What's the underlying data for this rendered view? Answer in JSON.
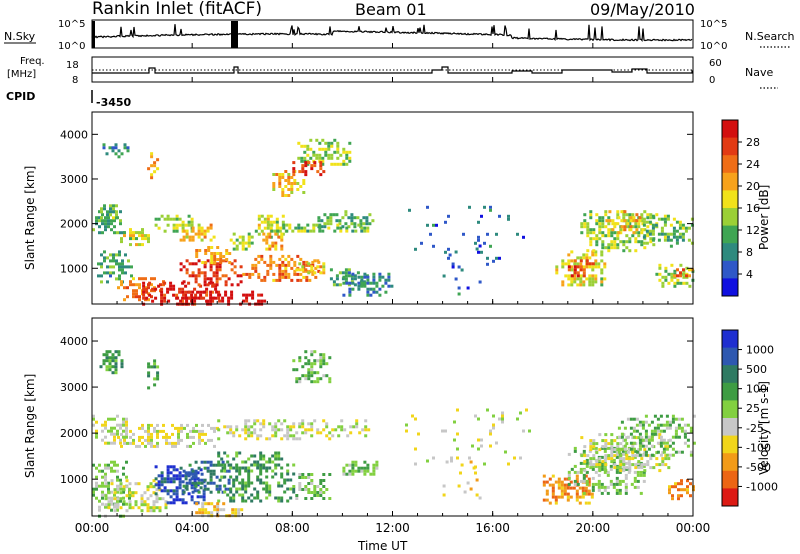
{
  "header": {
    "title": "Rankin Inlet (fitACF)",
    "beam": "Beam 01",
    "date": "09/May/2010"
  },
  "status_panels": {
    "nsky_label": "N.Sky",
    "nsky_ticks": [
      "10^5",
      "10^0"
    ],
    "nsearch_label": "N.Search",
    "nsearch_ticks": [
      "10^5",
      "10^0"
    ],
    "freq_label_1": "Freq.",
    "freq_label_2": "[MHz]",
    "freq_ticks": [
      "18",
      "8"
    ],
    "nave_label": "Nave",
    "nave_ticks": [
      "60",
      "0"
    ],
    "cpid_label": "CPID",
    "cpid_value": "-3450"
  },
  "chart_data": [
    {
      "type": "heatmap",
      "name": "power",
      "ylabel": "Slant Range [km]",
      "xlabel": "Time UT",
      "x_ticks": [
        "00:00",
        "04:00",
        "08:00",
        "12:00",
        "16:00",
        "20:00",
        "00:00"
      ],
      "y_ticks": [
        1000,
        2000,
        3000,
        4000
      ],
      "ylim": [
        200,
        4500
      ],
      "xlim_hours": [
        0,
        24
      ],
      "colorbar_label": "Power [dB]",
      "colorbar_ticks": [
        "4",
        "8",
        "12",
        "16",
        "20",
        "24",
        "28"
      ],
      "colorbar_colors": [
        "#1010e0",
        "#2f58c8",
        "#2e8a7e",
        "#3fa553",
        "#9bd036",
        "#f1e21a",
        "#f7a21b",
        "#ef6d16",
        "#e23a13",
        "#d30f0f"
      ],
      "blobs": [
        {
          "t": [
            0.0,
            1.2
          ],
          "r": [
            1800,
            2300
          ],
          "v": 8
        },
        {
          "t": [
            0.2,
            1.0
          ],
          "r": [
            2100,
            2500
          ],
          "v": 10
        },
        {
          "t": [
            0.3,
            1.4
          ],
          "r": [
            3500,
            3800
          ],
          "v": 6
        },
        {
          "t": [
            2.2,
            2.6
          ],
          "r": [
            3000,
            3600
          ],
          "v": 18
        },
        {
          "t": [
            1.0,
            2.3
          ],
          "r": [
            1500,
            1900
          ],
          "v": 14
        },
        {
          "t": [
            2.5,
            4.0
          ],
          "r": [
            1800,
            2200
          ],
          "v": 12
        },
        {
          "t": [
            3.5,
            5.0
          ],
          "r": [
            1600,
            2000
          ],
          "v": 16
        },
        {
          "t": [
            5.5,
            6.5
          ],
          "r": [
            1400,
            1800
          ],
          "v": 12
        },
        {
          "t": [
            6.5,
            7.8
          ],
          "r": [
            1700,
            2200
          ],
          "v": 14
        },
        {
          "t": [
            6.8,
            7.6
          ],
          "r": [
            1400,
            1800
          ],
          "v": 18
        },
        {
          "t": [
            7.2,
            8.4
          ],
          "r": [
            2600,
            3200
          ],
          "v": 16
        },
        {
          "t": [
            8.2,
            10.3
          ],
          "r": [
            3300,
            3900
          ],
          "v": 12
        },
        {
          "t": [
            8.0,
            9.3
          ],
          "r": [
            3100,
            3400
          ],
          "v": 24
        },
        {
          "t": [
            9.0,
            11.2
          ],
          "r": [
            1900,
            2300
          ],
          "v": 9
        },
        {
          "t": [
            7.0,
            11.0
          ],
          "r": [
            1800,
            2000
          ],
          "v": 11
        },
        {
          "t": [
            0.2,
            1.6
          ],
          "r": [
            700,
            1400
          ],
          "v": 8
        },
        {
          "t": [
            1.0,
            2.8
          ],
          "r": [
            300,
            800
          ],
          "v": 20
        },
        {
          "t": [
            2.0,
            5.0
          ],
          "r": [
            200,
            700
          ],
          "v": 26
        },
        {
          "t": [
            3.0,
            7.0
          ],
          "r": [
            200,
            500
          ],
          "v": 28
        },
        {
          "t": [
            3.5,
            6.0
          ],
          "r": [
            600,
            1200
          ],
          "v": 24
        },
        {
          "t": [
            4.0,
            5.5
          ],
          "r": [
            1100,
            1500
          ],
          "v": 18
        },
        {
          "t": [
            6.0,
            9.0
          ],
          "r": [
            700,
            1300
          ],
          "v": 20
        },
        {
          "t": [
            8.0,
            9.5
          ],
          "r": [
            900,
            1200
          ],
          "v": 16
        },
        {
          "t": [
            9.5,
            11.0
          ],
          "r": [
            600,
            1000
          ],
          "v": 8
        },
        {
          "t": [
            10.0,
            12.0
          ],
          "r": [
            400,
            900
          ],
          "v": 6
        },
        {
          "t": [
            18.5,
            20.5
          ],
          "r": [
            600,
            1400
          ],
          "v": 14
        },
        {
          "t": [
            19.0,
            20.0
          ],
          "r": [
            800,
            1200
          ],
          "v": 24
        },
        {
          "t": [
            19.5,
            22.5
          ],
          "r": [
            1400,
            2300
          ],
          "v": 12
        },
        {
          "t": [
            20.5,
            22.0
          ],
          "r": [
            1800,
            2300
          ],
          "v": 18
        },
        {
          "t": [
            22.0,
            24.0
          ],
          "r": [
            1500,
            2200
          ],
          "v": 10
        },
        {
          "t": [
            22.5,
            24.0
          ],
          "r": [
            600,
            1100
          ],
          "v": 12
        },
        {
          "t": [
            23.2,
            24.0
          ],
          "r": [
            800,
            1000
          ],
          "v": 20
        },
        {
          "t": [
            14.0,
            15.5
          ],
          "r": [
            400,
            1600
          ],
          "v": 4
        },
        {
          "t": [
            12.5,
            17.5
          ],
          "r": [
            1000,
            2600
          ],
          "v": 4
        }
      ]
    },
    {
      "type": "heatmap",
      "name": "velocity",
      "ylabel": "Slant Range [km]",
      "xlabel": "Time UT",
      "x_ticks": [
        "00:00",
        "04:00",
        "08:00",
        "12:00",
        "16:00",
        "20:00",
        "00:00"
      ],
      "y_ticks": [
        1000,
        2000,
        3000,
        4000
      ],
      "ylim": [
        200,
        4500
      ],
      "xlim_hours": [
        0,
        24
      ],
      "colorbar_label": "Velocity [m s-1]",
      "colorbar_ticks": [
        "1000",
        "500",
        "100",
        "25",
        "-25",
        "-100",
        "-500",
        "-1000"
      ],
      "colorbar_colors": [
        "#1f2fd0",
        "#2e58b0",
        "#2f7a62",
        "#3e9c43",
        "#82d040",
        "#c7c7c7",
        "#f1d51a",
        "#f29b18",
        "#ec6514",
        "#dc1a14"
      ],
      "blobs": [
        {
          "t": [
            0.0,
            1.4
          ],
          "r": [
            1800,
            2400
          ],
          "v": 0
        },
        {
          "t": [
            0.3,
            1.2
          ],
          "r": [
            3300,
            3800
          ],
          "v": 2
        },
        {
          "t": [
            2.2,
            2.6
          ],
          "r": [
            3000,
            3600
          ],
          "v": 2
        },
        {
          "t": [
            1.0,
            5.0
          ],
          "r": [
            1700,
            2200
          ],
          "v": 0
        },
        {
          "t": [
            5.0,
            11.0
          ],
          "r": [
            1900,
            2300
          ],
          "v": 0
        },
        {
          "t": [
            8.0,
            9.5
          ],
          "r": [
            3100,
            3800
          ],
          "v": 1
        },
        {
          "t": [
            0.0,
            1.5
          ],
          "r": [
            200,
            1400
          ],
          "v": 1
        },
        {
          "t": [
            0.5,
            3.0
          ],
          "r": [
            300,
            1000
          ],
          "v": 0
        },
        {
          "t": [
            2.5,
            4.5
          ],
          "r": [
            500,
            1300
          ],
          "v": 4
        },
        {
          "t": [
            3.5,
            5.5
          ],
          "r": [
            700,
            1400
          ],
          "v": 3
        },
        {
          "t": [
            5.0,
            8.0
          ],
          "r": [
            500,
            1600
          ],
          "v": 2
        },
        {
          "t": [
            4.0,
            6.0
          ],
          "r": [
            200,
            500
          ],
          "v": -1
        },
        {
          "t": [
            8.0,
            9.5
          ],
          "r": [
            600,
            1200
          ],
          "v": 1
        },
        {
          "t": [
            10.0,
            11.5
          ],
          "r": [
            1100,
            1400
          ],
          "v": 1
        },
        {
          "t": [
            18.0,
            20.0
          ],
          "r": [
            500,
            1100
          ],
          "v": -2
        },
        {
          "t": [
            19.0,
            22.0
          ],
          "r": [
            700,
            1700
          ],
          "v": 1
        },
        {
          "t": [
            19.5,
            23.0
          ],
          "r": [
            1200,
            2000
          ],
          "v": 0
        },
        {
          "t": [
            21.0,
            24.0
          ],
          "r": [
            1500,
            2400
          ],
          "v": 1
        },
        {
          "t": [
            23.0,
            24.0
          ],
          "r": [
            600,
            1000
          ],
          "v": -2
        },
        {
          "t": [
            14.0,
            15.5
          ],
          "r": [
            400,
            1600
          ],
          "v": -1
        },
        {
          "t": [
            12.5,
            17.5
          ],
          "r": [
            1000,
            2600
          ],
          "v": 0
        }
      ]
    }
  ]
}
